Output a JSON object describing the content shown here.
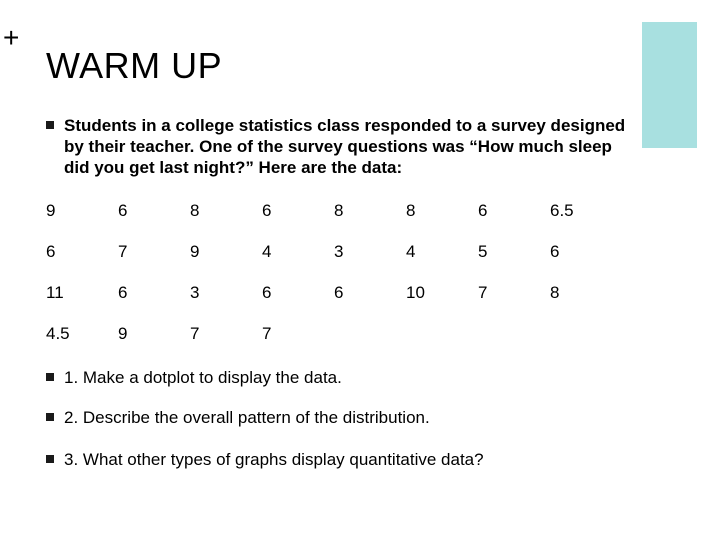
{
  "slide": {
    "corner_mark": "+",
    "title": "WARM UP",
    "accent_color": "#a8e0e0",
    "intro": "Students in a college statistics class responded to a survey designed by their teacher.  One of the survey questions was “How much sleep did you get last night?” Here are the data:",
    "data_rows": [
      [
        "9",
        "6",
        "8",
        "6",
        "8",
        "8",
        "6",
        "6.5"
      ],
      [
        "6",
        "7",
        "9",
        "4",
        "3",
        "4",
        "5",
        "6"
      ],
      [
        "11",
        "6",
        "3",
        "6",
        "6",
        "10",
        "7",
        "8"
      ],
      [
        "4.5",
        "9",
        "7",
        "7",
        "",
        "",
        "",
        ""
      ]
    ],
    "questions": [
      "1. Make a dotplot to display the data.",
      "2. Describe the overall pattern of the distribution.",
      "3. What other types of graphs display quantitative data?"
    ]
  }
}
